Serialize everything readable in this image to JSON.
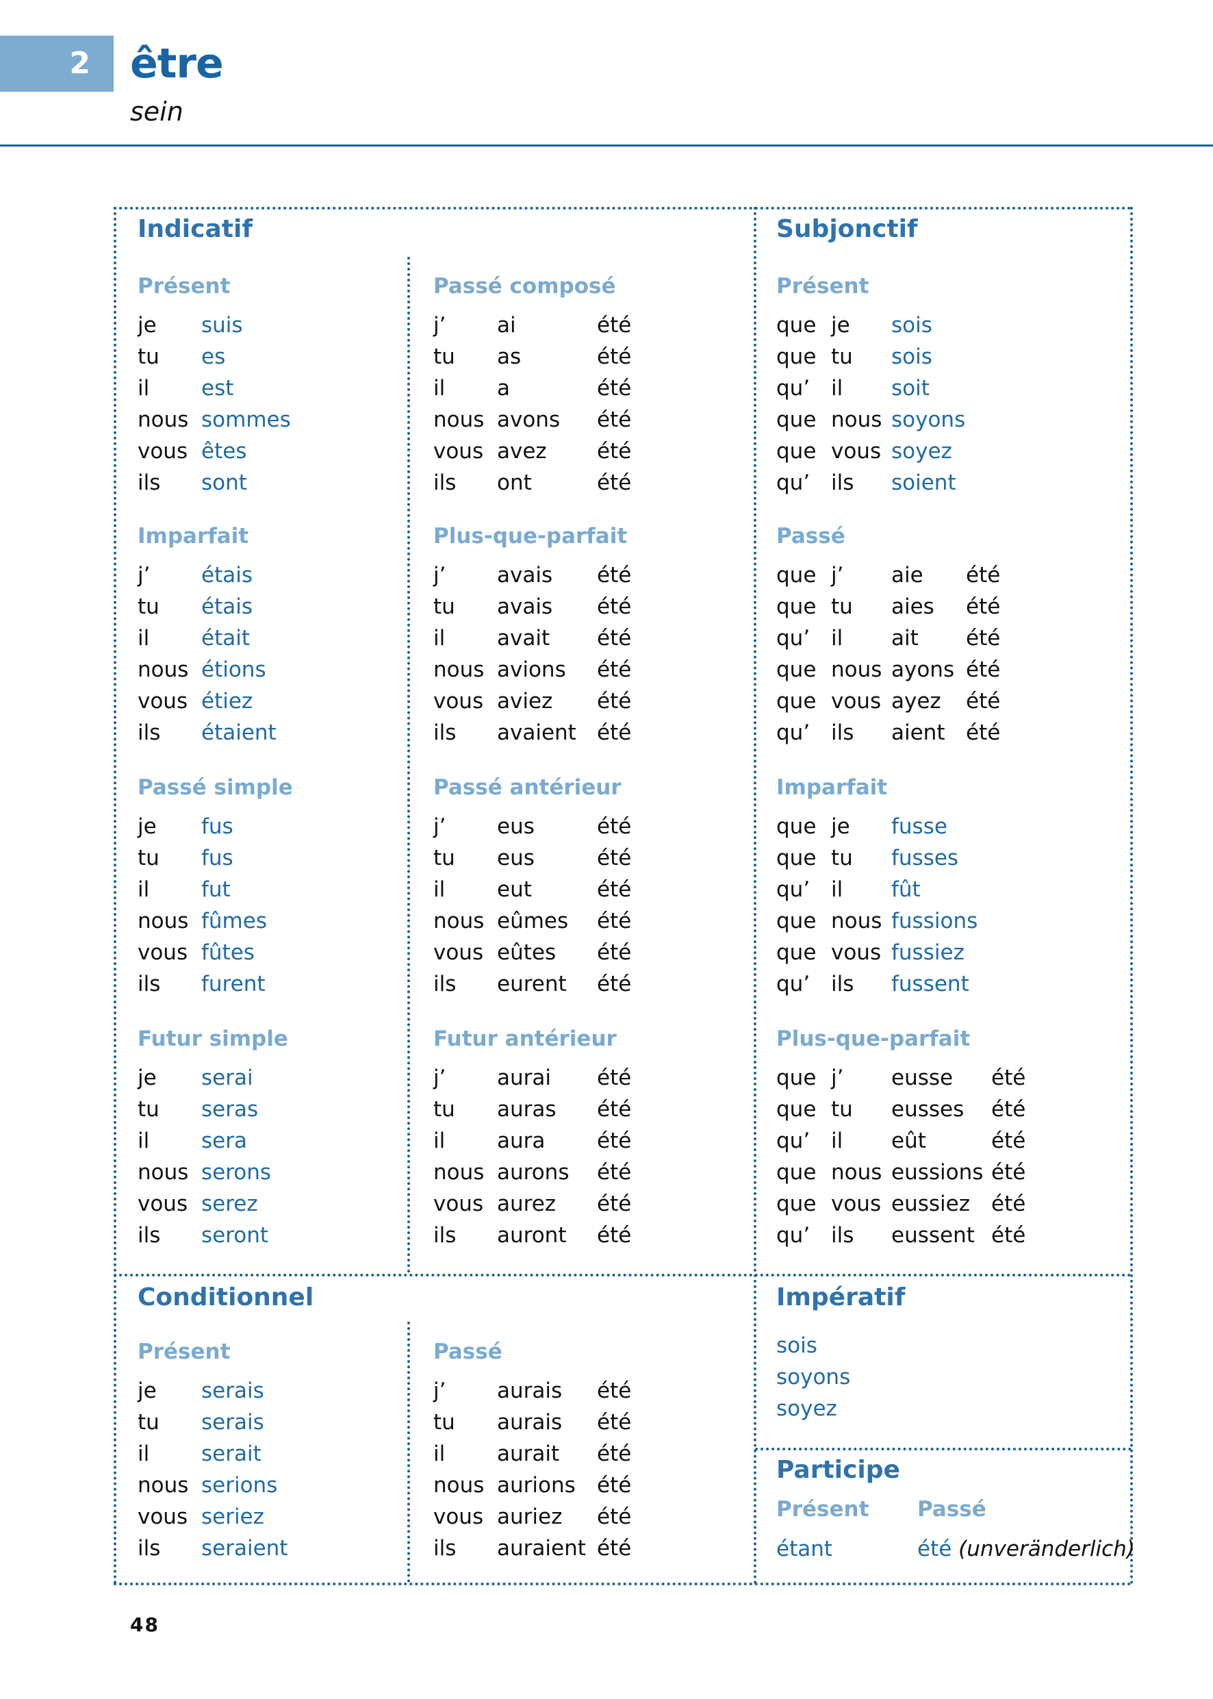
{
  "header": {
    "number": "2",
    "verb": "être",
    "translation": "sein"
  },
  "colors": {
    "accent": "#1a64a3",
    "title_light": "#7aaad0",
    "number_box": "#7eabd0",
    "form": "#1f6aa5"
  },
  "indicatif": {
    "label": "Indicatif",
    "tenses": [
      {
        "title": "Présent",
        "kind": "simple",
        "rows": [
          [
            "je",
            "suis"
          ],
          [
            "tu",
            "es"
          ],
          [
            "il",
            "est"
          ],
          [
            "nous",
            "sommes"
          ],
          [
            "vous",
            "êtes"
          ],
          [
            "ils",
            "sont"
          ]
        ]
      },
      {
        "title": "Passé composé",
        "kind": "compound",
        "rows": [
          [
            "j’",
            "ai",
            "été"
          ],
          [
            "tu",
            "as",
            "été"
          ],
          [
            "il",
            "a",
            "été"
          ],
          [
            "nous",
            "avons",
            "été"
          ],
          [
            "vous",
            "avez",
            "été"
          ],
          [
            "ils",
            "ont",
            "été"
          ]
        ]
      },
      {
        "title": "Imparfait",
        "kind": "simple",
        "rows": [
          [
            "j’",
            "étais"
          ],
          [
            "tu",
            "étais"
          ],
          [
            "il",
            "était"
          ],
          [
            "nous",
            "étions"
          ],
          [
            "vous",
            "étiez"
          ],
          [
            "ils",
            "étaient"
          ]
        ]
      },
      {
        "title": "Plus-que-parfait",
        "kind": "compound",
        "rows": [
          [
            "j’",
            "avais",
            "été"
          ],
          [
            "tu",
            "avais",
            "été"
          ],
          [
            "il",
            "avait",
            "été"
          ],
          [
            "nous",
            "avions",
            "été"
          ],
          [
            "vous",
            "aviez",
            "été"
          ],
          [
            "ils",
            "avaient",
            "été"
          ]
        ]
      },
      {
        "title": "Passé simple",
        "kind": "simple",
        "rows": [
          [
            "je",
            "fus"
          ],
          [
            "tu",
            "fus"
          ],
          [
            "il",
            "fut"
          ],
          [
            "nous",
            "fûmes"
          ],
          [
            "vous",
            "fûtes"
          ],
          [
            "ils",
            "furent"
          ]
        ]
      },
      {
        "title": "Passé antérieur",
        "kind": "compound",
        "rows": [
          [
            "j’",
            "eus",
            "été"
          ],
          [
            "tu",
            "eus",
            "été"
          ],
          [
            "il",
            "eut",
            "été"
          ],
          [
            "nous",
            "eûmes",
            "été"
          ],
          [
            "vous",
            "eûtes",
            "été"
          ],
          [
            "ils",
            "eurent",
            "été"
          ]
        ]
      },
      {
        "title": "Futur simple",
        "kind": "simple",
        "rows": [
          [
            "je",
            "serai"
          ],
          [
            "tu",
            "seras"
          ],
          [
            "il",
            "sera"
          ],
          [
            "nous",
            "serons"
          ],
          [
            "vous",
            "serez"
          ],
          [
            "ils",
            "seront"
          ]
        ]
      },
      {
        "title": "Futur antérieur",
        "kind": "compound",
        "rows": [
          [
            "j’",
            "aurai",
            "été"
          ],
          [
            "tu",
            "auras",
            "été"
          ],
          [
            "il",
            "aura",
            "été"
          ],
          [
            "nous",
            "aurons",
            "été"
          ],
          [
            "vous",
            "aurez",
            "été"
          ],
          [
            "ils",
            "auront",
            "été"
          ]
        ]
      }
    ]
  },
  "subjonctif": {
    "label": "Subjonctif",
    "tenses": [
      {
        "title": "Présent",
        "kind": "subj-simple",
        "rows": [
          [
            "que",
            "je",
            "sois"
          ],
          [
            "que",
            "tu",
            "sois"
          ],
          [
            "qu’",
            "il",
            "soit"
          ],
          [
            "que",
            "nous",
            "soyons"
          ],
          [
            "que",
            "vous",
            "soyez"
          ],
          [
            "qu’",
            "ils",
            "soient"
          ]
        ]
      },
      {
        "title": "Passé",
        "kind": "subj-compound",
        "rows": [
          [
            "que",
            "j’",
            "aie",
            "été"
          ],
          [
            "que",
            "tu",
            "aies",
            "été"
          ],
          [
            "qu’",
            "il",
            "ait",
            "été"
          ],
          [
            "que",
            "nous",
            "ayons",
            "été"
          ],
          [
            "que",
            "vous",
            "ayez",
            "été"
          ],
          [
            "qu’",
            "ils",
            "aient",
            "été"
          ]
        ]
      },
      {
        "title": "Imparfait",
        "kind": "subj-simple",
        "rows": [
          [
            "que",
            "je",
            "fusse"
          ],
          [
            "que",
            "tu",
            "fusses"
          ],
          [
            "qu’",
            "il",
            "fût"
          ],
          [
            "que",
            "nous",
            "fussions"
          ],
          [
            "que",
            "vous",
            "fussiez"
          ],
          [
            "qu’",
            "ils",
            "fussent"
          ]
        ]
      },
      {
        "title": "Plus-que-parfait",
        "kind": "subj-compound-wide",
        "rows": [
          [
            "que",
            "j’",
            "eusse",
            "été"
          ],
          [
            "que",
            "tu",
            "eusses",
            "été"
          ],
          [
            "qu’",
            "il",
            "eût",
            "été"
          ],
          [
            "que",
            "nous",
            "eussions",
            "été"
          ],
          [
            "que",
            "vous",
            "eussiez",
            "été"
          ],
          [
            "qu’",
            "ils",
            "eussent",
            "été"
          ]
        ]
      }
    ]
  },
  "conditionnel": {
    "label": "Conditionnel",
    "tenses": [
      {
        "title": "Présent",
        "kind": "simple",
        "rows": [
          [
            "je",
            "serais"
          ],
          [
            "tu",
            "serais"
          ],
          [
            "il",
            "serait"
          ],
          [
            "nous",
            "serions"
          ],
          [
            "vous",
            "seriez"
          ],
          [
            "ils",
            "seraient"
          ]
        ]
      },
      {
        "title": "Passé",
        "kind": "compound",
        "rows": [
          [
            "j’",
            "aurais",
            "été"
          ],
          [
            "tu",
            "aurais",
            "été"
          ],
          [
            "il",
            "aurait",
            "été"
          ],
          [
            "nous",
            "aurions",
            "été"
          ],
          [
            "vous",
            "auriez",
            "été"
          ],
          [
            "ils",
            "auraient",
            "été"
          ]
        ]
      }
    ]
  },
  "imperatif": {
    "label": "Impératif",
    "forms": [
      "sois",
      "soyons",
      "soyez"
    ]
  },
  "participe": {
    "label": "Participe",
    "present_title": "Présent",
    "present": "étant",
    "passe_title": "Passé",
    "passe": "été",
    "passe_note": "(unveränderlich)"
  },
  "page_number": "48"
}
